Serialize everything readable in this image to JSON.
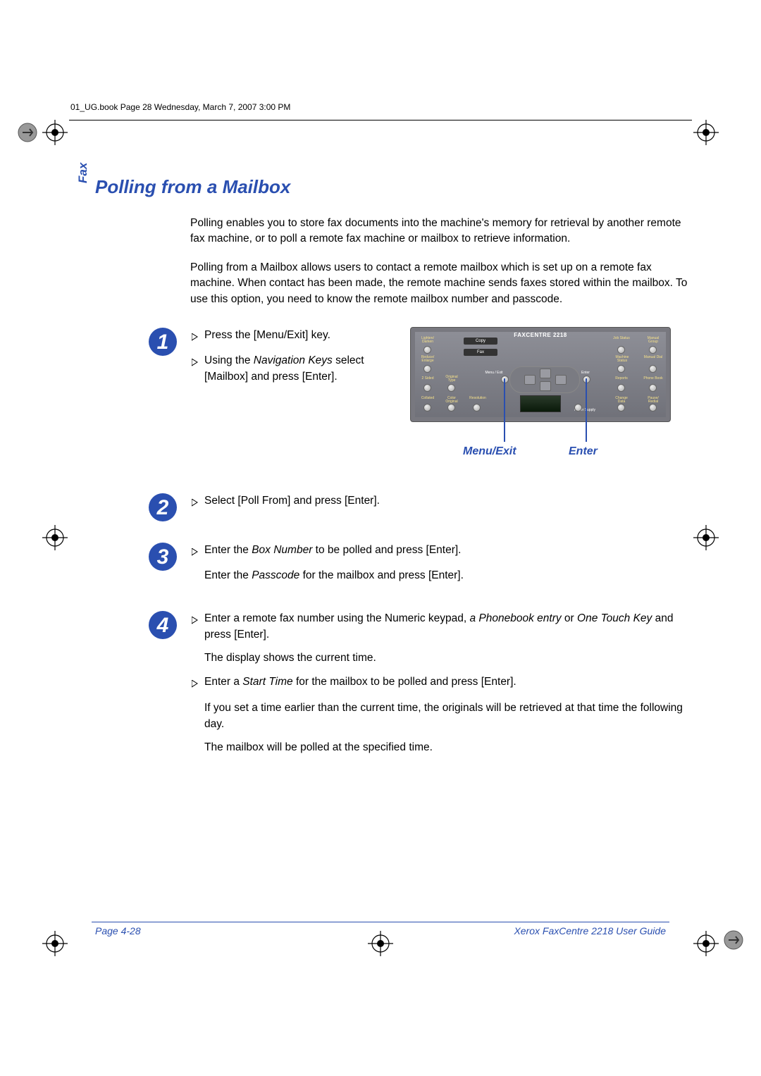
{
  "header": {
    "runhead": "01_UG.book  Page 28  Wednesday, March 7, 2007  3:00 PM"
  },
  "side_tab": "Fax",
  "title": "Polling from a Mailbox",
  "intro": [
    "Polling enables you to store fax documents into the machine's memory for retrieval by another remote fax machine, or to poll a remote fax machine or mailbox to retrieve information.",
    "Polling from a Mailbox allows users to contact a remote mailbox which is set up on a remote fax machine. When contact has been made, the remote machine sends faxes stored within the mailbox. To use this option, you need to know the remote mailbox number and passcode."
  ],
  "steps": {
    "1": {
      "bullets": [
        "Press the [Menu/Exit] key.",
        "Using the <i>Navigation Keys</i> select [Mailbox] and press [Enter]."
      ]
    },
    "2": {
      "bullets": [
        "Select [Poll From] and press [Enter]."
      ]
    },
    "3": {
      "bullets": [
        "Enter the <i>Box Number</i> to be polled and press [Enter]."
      ],
      "plain": [
        "Enter the <i>Passcode</i> for the mailbox and press [Enter]."
      ]
    },
    "4": {
      "bullets": [
        "Enter a remote fax number using the Numeric keypad, <i>a Phonebook entry</i> or <i>One Touch Key</i> and press [Enter]."
      ],
      "plain1": "The display shows the current time.",
      "bullets2": [
        "Enter a <i>Start Time</i> for the mailbox to be polled and press [Enter]."
      ],
      "plain2": "If you set a time earlier than the current time, the originals will be retrieved at that time the following day.",
      "plain3": "The mailbox will be polled at the specified time."
    }
  },
  "panel": {
    "title": "FAXCENTRE 2218",
    "copy": "Copy",
    "fax": "Fax",
    "callout_left": "Menu/Exit",
    "callout_right": "Enter",
    "labels": {
      "l1": "Lighten/\nDarken",
      "l2": "Reduce/\nEnlarge",
      "l3": "2 Sided",
      "l4": "Collated",
      "l5": "Original\nType",
      "l6": "Color\nOriginal",
      "l7": "Resolution",
      "r1": "Job\nStatus",
      "r2": "Machine\nStatus",
      "r3": "Reports",
      "r4": "Change\nData",
      "rr1": "Manual\nGroup",
      "rr2": "Manual\nDial",
      "rr3": "Phone\nBook",
      "rr4": "Pause/\nRedial",
      "menu": "Menu / Exit",
      "enter": "Enter",
      "paper": "Paper Supply"
    }
  },
  "footer": {
    "page": "Page 4-28",
    "guide": "Xerox FaxCentre 2218 User Guide"
  },
  "colors": {
    "blue": "#2a4fb0"
  }
}
